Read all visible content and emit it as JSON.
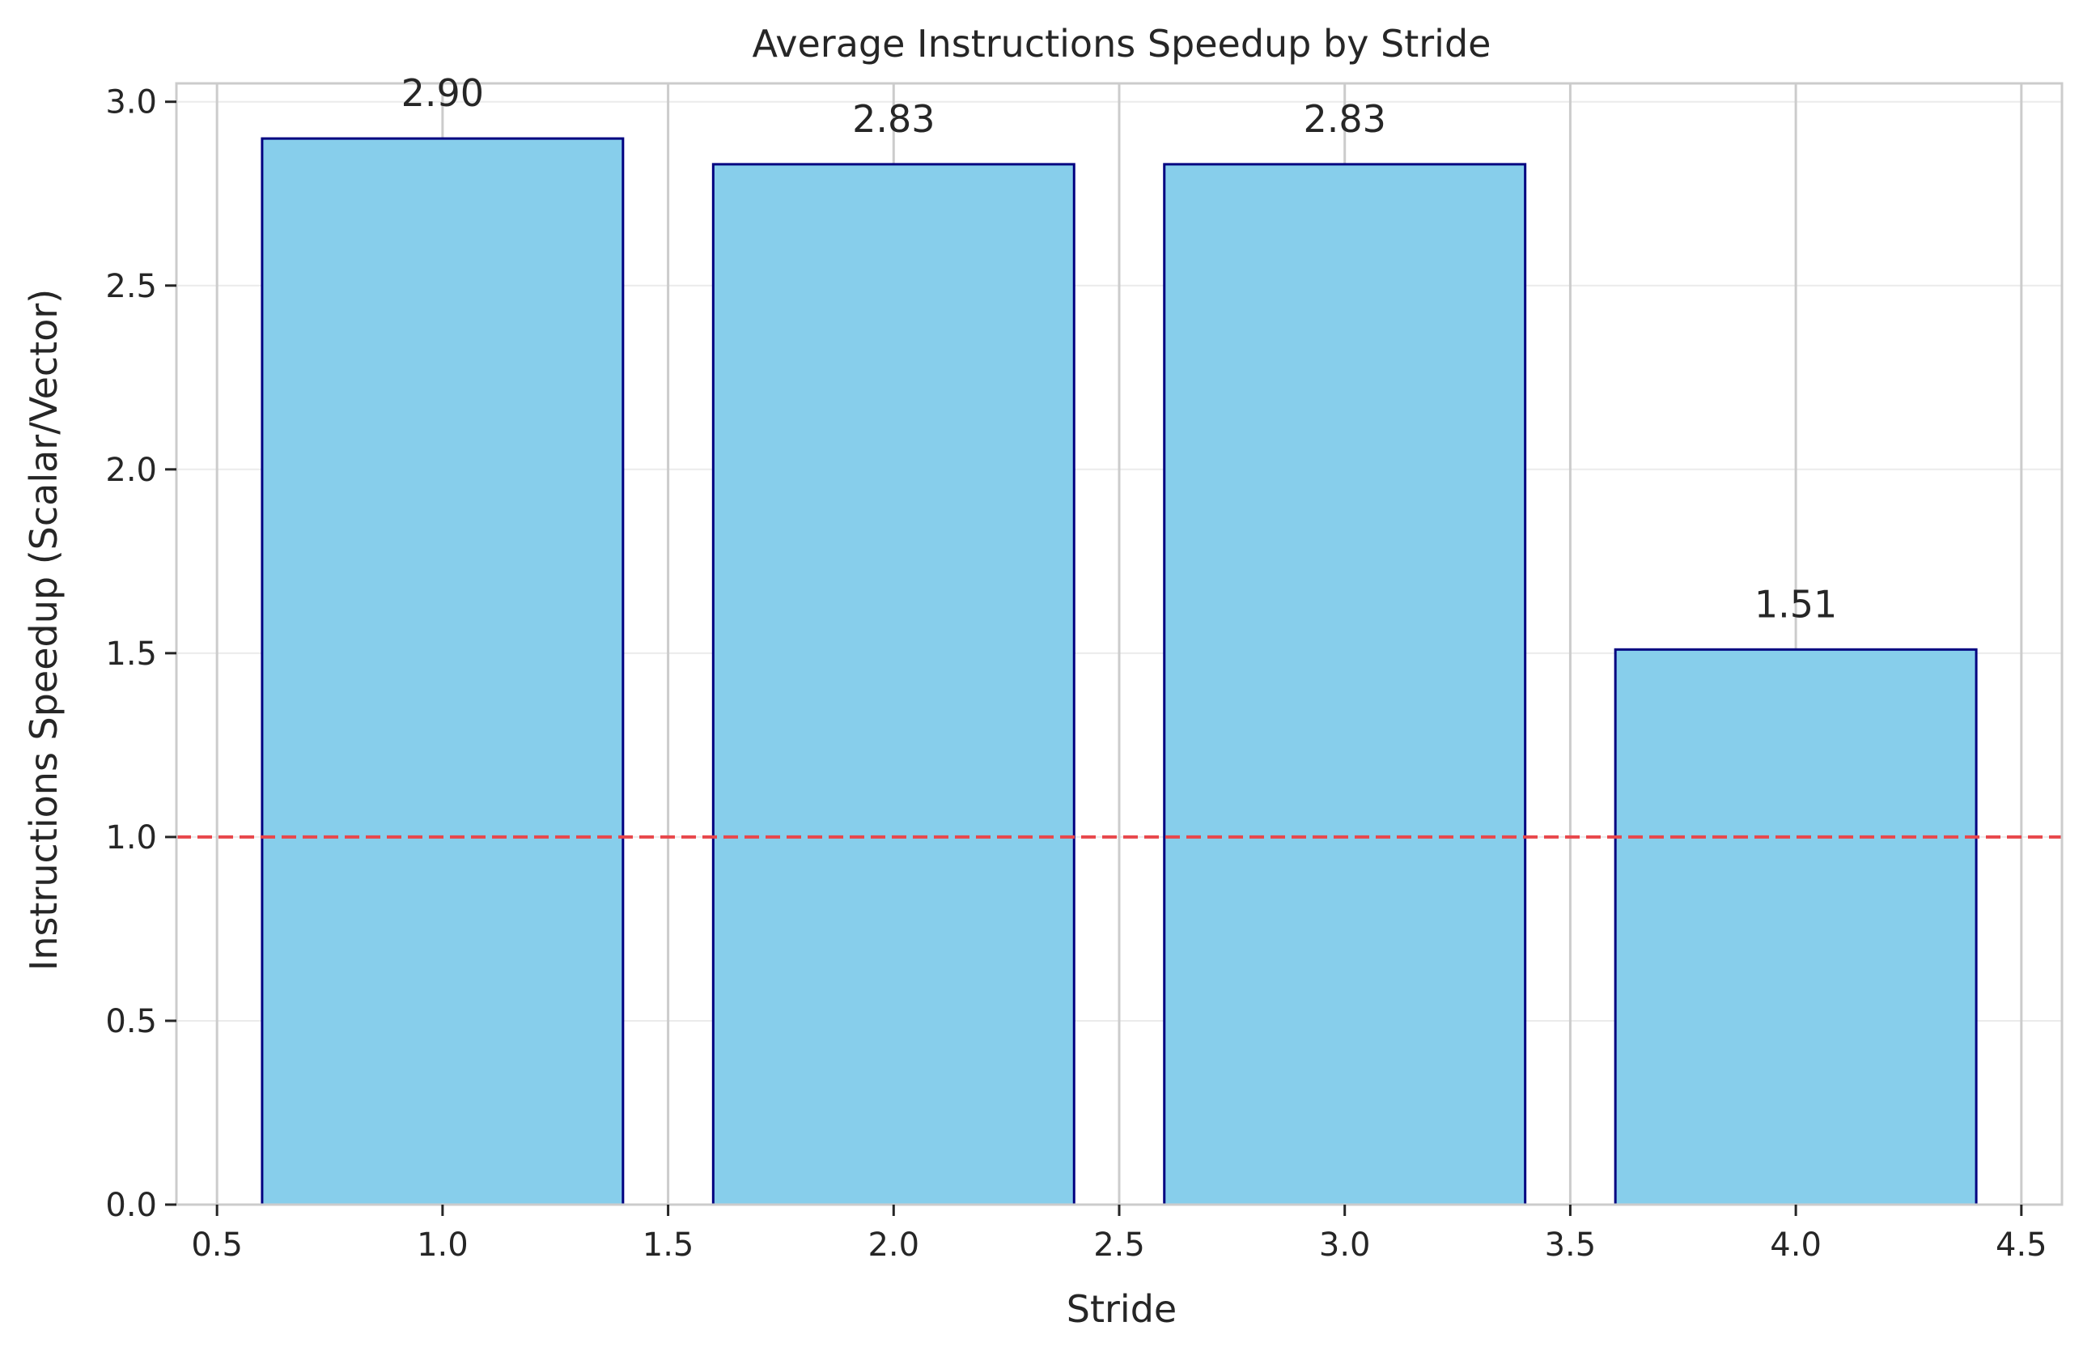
{
  "chart_data": {
    "type": "bar",
    "title": "Average Instructions Speedup by Stride",
    "xlabel": "Stride",
    "ylabel": "Instructions Speedup (Scalar/Vector)",
    "x": [
      1,
      2,
      3,
      4
    ],
    "values": [
      2.9,
      2.83,
      2.83,
      1.51
    ],
    "value_labels": [
      "2.90",
      "2.83",
      "2.83",
      "1.51"
    ],
    "bar_width": 0.8,
    "xlim": [
      0.41,
      4.59
    ],
    "ylim": [
      0,
      3.05
    ],
    "xticks": [
      0.5,
      1.0,
      1.5,
      2.0,
      2.5,
      3.0,
      3.5,
      4.0,
      4.5
    ],
    "xtick_labels": [
      "0.5",
      "1.0",
      "1.5",
      "2.0",
      "2.5",
      "3.0",
      "3.5",
      "4.0",
      "4.5"
    ],
    "yticks": [
      0.0,
      0.5,
      1.0,
      1.5,
      2.0,
      2.5,
      3.0
    ],
    "ytick_labels": [
      "0.0",
      "0.5",
      "1.0",
      "1.5",
      "2.0",
      "2.5",
      "3.0"
    ],
    "reference_line": {
      "y": 1.0,
      "style": "dashed",
      "color": "#e8474b"
    },
    "grid": true,
    "colors": {
      "bar_fill": "#87ceeb",
      "bar_edge": "#000080",
      "grid": "#cccccc",
      "spine": "#cccccc"
    }
  }
}
